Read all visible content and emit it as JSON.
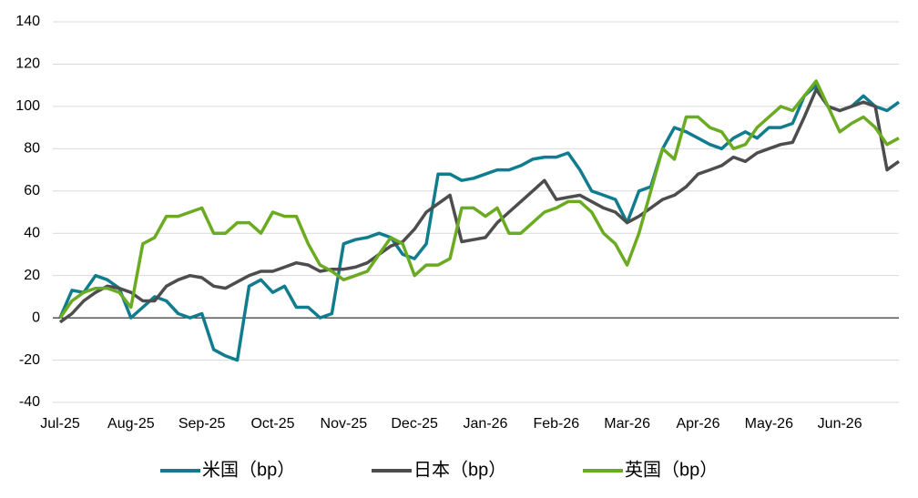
{
  "chart_data": {
    "type": "line",
    "categories": [
      "Jul-25",
      null,
      null,
      null,
      null,
      null,
      "Aug-25",
      null,
      null,
      null,
      null,
      null,
      "Sep-25",
      null,
      null,
      null,
      null,
      null,
      "Oct-25",
      null,
      null,
      null,
      null,
      null,
      "Nov-25",
      null,
      null,
      null,
      null,
      null,
      "Dec-25",
      null,
      null,
      null,
      null,
      null,
      "Jan-26",
      null,
      null,
      null,
      null,
      null,
      "Feb-26",
      null,
      null,
      null,
      null,
      null,
      "Mar-26",
      null,
      null,
      null,
      null,
      null,
      "Apr-26",
      null,
      null,
      null,
      null,
      null,
      "May-26",
      null,
      null,
      null,
      null,
      null,
      "Jun-26",
      null,
      null,
      null,
      null,
      null
    ],
    "series": [
      {
        "name": "米国（bp）",
        "color": "#117c8e",
        "values": [
          0,
          13,
          12,
          20,
          18,
          14,
          0,
          5,
          10,
          8,
          2,
          0,
          2,
          -15,
          -18,
          -20,
          15,
          18,
          12,
          15,
          5,
          5,
          0,
          2,
          35,
          37,
          38,
          40,
          38,
          30,
          28,
          35,
          68,
          68,
          65,
          66,
          68,
          70,
          70,
          72,
          75,
          76,
          76,
          78,
          70,
          60,
          58,
          56,
          45,
          60,
          62,
          80,
          90,
          88,
          85,
          82,
          80,
          85,
          88,
          85,
          90,
          90,
          92,
          105,
          110,
          100,
          98,
          100,
          105,
          100,
          98,
          102
        ]
      },
      {
        "name": "日本（bp）",
        "color": "#4d4d4d",
        "values": [
          -2,
          2,
          8,
          12,
          15,
          14,
          12,
          8,
          8,
          15,
          18,
          20,
          19,
          15,
          14,
          17,
          20,
          22,
          22,
          24,
          26,
          25,
          22,
          23,
          23,
          24,
          26,
          30,
          34,
          36,
          42,
          50,
          54,
          58,
          36,
          37,
          38,
          45,
          50,
          55,
          60,
          65,
          56,
          57,
          58,
          55,
          52,
          50,
          45,
          48,
          52,
          56,
          58,
          62,
          68,
          70,
          72,
          76,
          74,
          78,
          80,
          82,
          83,
          95,
          108,
          100,
          98,
          100,
          102,
          100,
          70,
          74
        ]
      },
      {
        "name": "英国（bp）",
        "color": "#6aab22",
        "values": [
          0,
          8,
          12,
          14,
          14,
          12,
          5,
          35,
          38,
          48,
          48,
          50,
          52,
          40,
          40,
          45,
          45,
          40,
          50,
          48,
          48,
          35,
          25,
          22,
          18,
          20,
          22,
          30,
          38,
          35,
          20,
          25,
          25,
          28,
          52,
          52,
          48,
          52,
          40,
          40,
          45,
          50,
          52,
          55,
          55,
          50,
          40,
          35,
          25,
          40,
          60,
          80,
          75,
          95,
          95,
          90,
          88,
          80,
          82,
          90,
          95,
          100,
          98,
          105,
          112,
          100,
          88,
          92,
          95,
          90,
          82,
          85
        ]
      }
    ],
    "ylim": [
      -40,
      140
    ],
    "yticks": [
      -40,
      -20,
      0,
      20,
      40,
      60,
      80,
      100,
      120,
      140
    ],
    "grid": true,
    "negative_tick_color": "#e00000",
    "legend": "bottom"
  }
}
